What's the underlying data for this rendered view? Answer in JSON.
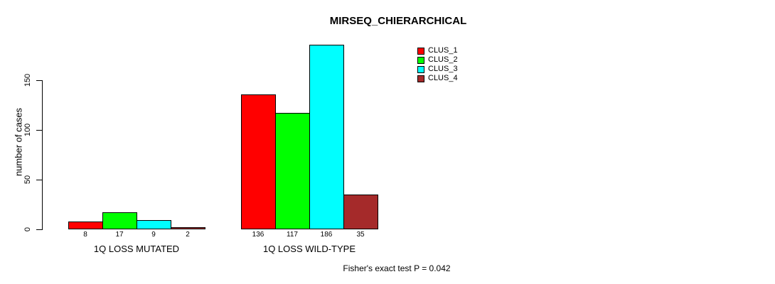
{
  "chart_data": {
    "type": "bar",
    "title": "MIRSEQ_CHIERARCHICAL",
    "ylabel": "number of cases",
    "xlabel": "",
    "ylim": [
      0,
      150
    ],
    "yticks": [
      0,
      50,
      100,
      150
    ],
    "grid": false,
    "categories": [
      "1Q LOSS MUTATED",
      "1Q LOSS WILD-TYPE"
    ],
    "series": [
      {
        "name": "CLUS_1",
        "color": "#ff0000",
        "values": [
          8,
          136
        ]
      },
      {
        "name": "CLUS_2",
        "color": "#00ff00",
        "values": [
          17,
          117
        ]
      },
      {
        "name": "CLUS_3",
        "color": "#00ffff",
        "values": [
          9,
          186
        ]
      },
      {
        "name": "CLUS_4",
        "color": "#a52a2a",
        "values": [
          2,
          35
        ]
      }
    ],
    "bar_value_labels": [
      [
        8,
        17,
        9,
        2
      ],
      [
        136,
        117,
        186,
        35
      ]
    ],
    "legend": {
      "position": "top-right",
      "entries": [
        "CLUS_1",
        "CLUS_2",
        "CLUS_3",
        "CLUS_4"
      ]
    },
    "annotation": "Fisher's exact test P = 0.042"
  }
}
